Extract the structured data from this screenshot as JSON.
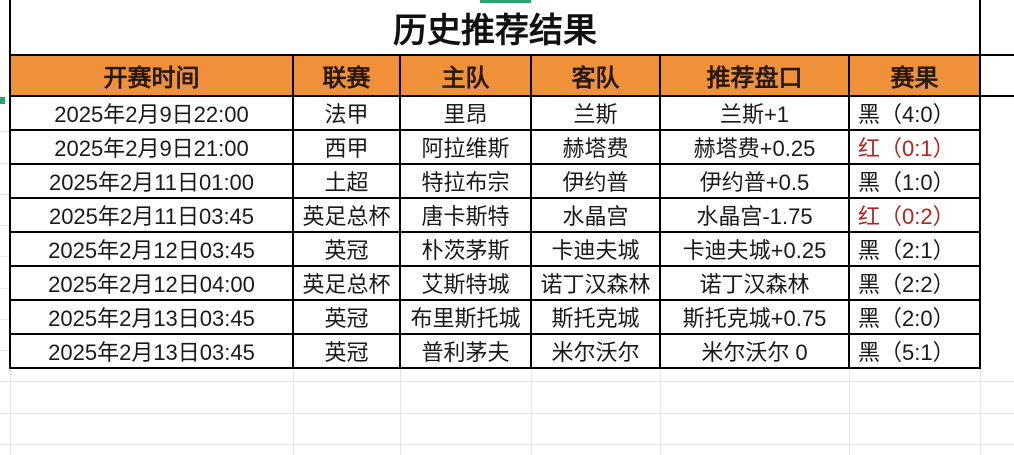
{
  "title": "历史推荐结果",
  "colors": {
    "header_bg": "#F0913A",
    "result_red": "#B3251F",
    "result_black": "#1a1a1a",
    "accent_green": "#27A673",
    "border_black": "#000000"
  },
  "table": {
    "headers": [
      "开赛时间",
      "联赛",
      "主队",
      "客队",
      "推荐盘口",
      "赛果"
    ],
    "rows": [
      {
        "time": "2025年2月9日22:00",
        "league": "法甲",
        "home": "里昂",
        "away": "兰斯",
        "handicap": "兰斯+1",
        "result": "黑（4:0）",
        "result_color": "black"
      },
      {
        "time": "2025年2月9日21:00",
        "league": "西甲",
        "home": "阿拉维斯",
        "away": "赫塔费",
        "handicap": "赫塔费+0.25",
        "result": "红（0:1）",
        "result_color": "red"
      },
      {
        "time": "2025年2月11日01:00",
        "league": "土超",
        "home": "特拉布宗",
        "away": "伊约普",
        "handicap": "伊约普+0.5",
        "result": "黑（1:0）",
        "result_color": "black"
      },
      {
        "time": "2025年2月11日03:45",
        "league": "英足总杯",
        "home": "唐卡斯特",
        "away": "水晶宫",
        "handicap": "水晶宫-1.75",
        "result": "红（0:2）",
        "result_color": "red"
      },
      {
        "time": "2025年2月12日03:45",
        "league": "英冠",
        "home": "朴茨茅斯",
        "away": "卡迪夫城",
        "handicap": "卡迪夫城+0.25",
        "result": "黑（2:1）",
        "result_color": "black"
      },
      {
        "time": "2025年2月12日04:00",
        "league": "英足总杯",
        "home": "艾斯特城",
        "away": "诺丁汉森林",
        "handicap": "诺丁汉森林",
        "result": "黑（2:2）",
        "result_color": "black"
      },
      {
        "time": "2025年2月13日03:45",
        "league": "英冠",
        "home": "布里斯托城",
        "away": "斯托克城",
        "handicap": "斯托克城+0.75",
        "result": "黑（2:0）",
        "result_color": "black"
      },
      {
        "time": "2025年2月13日03:45",
        "league": "英冠",
        "home": "普利茅夫",
        "away": "米尔沃尔",
        "handicap": "米尔沃尔 0",
        "result": "黑（5:1）",
        "result_color": "black"
      }
    ]
  }
}
